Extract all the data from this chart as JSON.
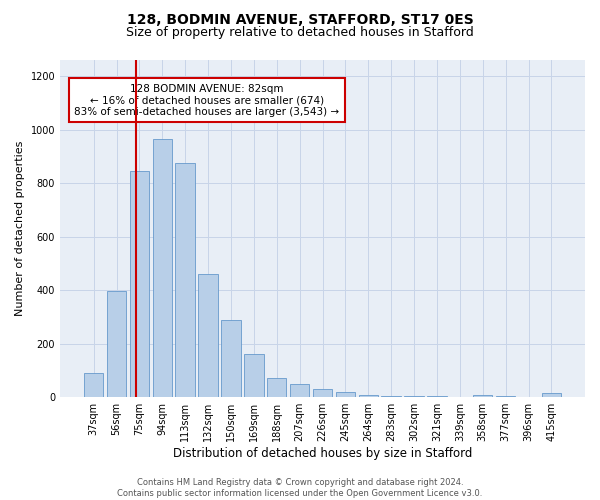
{
  "title1": "128, BODMIN AVENUE, STAFFORD, ST17 0ES",
  "title2": "Size of property relative to detached houses in Stafford",
  "xlabel": "Distribution of detached houses by size in Stafford",
  "ylabel": "Number of detached properties",
  "categories": [
    "37sqm",
    "56sqm",
    "75sqm",
    "94sqm",
    "113sqm",
    "132sqm",
    "150sqm",
    "169sqm",
    "188sqm",
    "207sqm",
    "226sqm",
    "245sqm",
    "264sqm",
    "283sqm",
    "302sqm",
    "321sqm",
    "339sqm",
    "358sqm",
    "377sqm",
    "396sqm",
    "415sqm"
  ],
  "values": [
    90,
    395,
    845,
    965,
    875,
    460,
    290,
    160,
    70,
    50,
    30,
    20,
    10,
    5,
    5,
    5,
    0,
    10,
    5,
    0,
    15
  ],
  "bar_color": "#b8cfe8",
  "bar_edge_color": "#6699cc",
  "vline_color": "#cc0000",
  "annotation_text": "128 BODMIN AVENUE: 82sqm\n← 16% of detached houses are smaller (674)\n83% of semi-detached houses are larger (3,543) →",
  "annotation_box_color": "#ffffff",
  "annotation_box_edge_color": "#cc0000",
  "ylim": [
    0,
    1260
  ],
  "yticks": [
    0,
    200,
    400,
    600,
    800,
    1000,
    1200
  ],
  "grid_color": "#c8d4e8",
  "bg_color": "#e8eef6",
  "footnote": "Contains HM Land Registry data © Crown copyright and database right 2024.\nContains public sector information licensed under the Open Government Licence v3.0.",
  "title1_fontsize": 10,
  "title2_fontsize": 9,
  "xlabel_fontsize": 8.5,
  "ylabel_fontsize": 8,
  "tick_fontsize": 7,
  "annot_fontsize": 7.5,
  "footnote_fontsize": 6
}
